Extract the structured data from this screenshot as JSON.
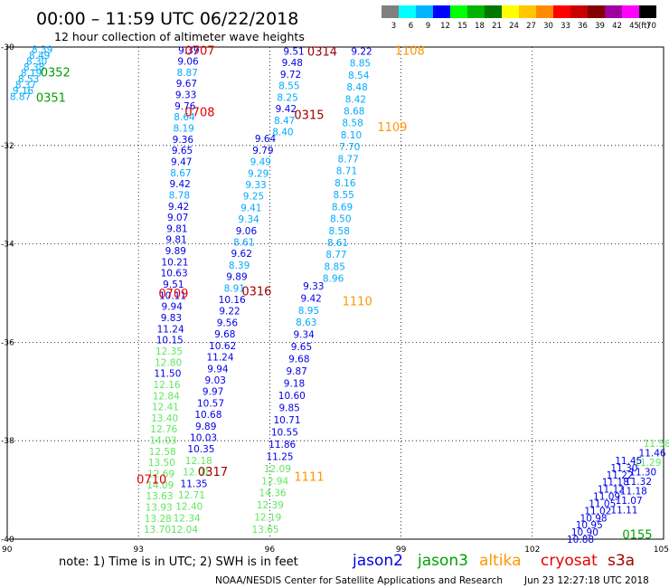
{
  "header": {
    "title": "00:00 – 11:59 UTC 06/22/2018",
    "subtitle": "12 hour collection of altimeter wave heights"
  },
  "colorbar": {
    "unit": "(ft)",
    "labels": [
      "3",
      "6",
      "9",
      "12",
      "15",
      "18",
      "21",
      "24",
      "27",
      "30",
      "33",
      "36",
      "39",
      "42",
      "45",
      "70"
    ],
    "colors": [
      "#808080",
      "#00ffff",
      "#00b4ff",
      "#0000ff",
      "#00ff00",
      "#00b400",
      "#007800",
      "#ffff00",
      "#ffc800",
      "#ff8c00",
      "#ff0000",
      "#c80000",
      "#820000",
      "#a000a0",
      "#ff00ff",
      "#000000"
    ]
  },
  "axes": {
    "lon_ticks": [
      "90",
      "93",
      "96",
      "99",
      "102",
      "105"
    ],
    "lat_ticks": [
      "-30",
      "-32",
      "-34",
      "-36",
      "-38",
      "-40"
    ],
    "lon_range": [
      90,
      105
    ],
    "lat_range": [
      -40,
      -30
    ]
  },
  "legend": {
    "note": "note:  1) Time is in UTC;  2) SWH is in feet",
    "missions": [
      {
        "name": "jason2",
        "color": "#0000e6"
      },
      {
        "name": "jason3",
        "color": "#00a000"
      },
      {
        "name": "altika",
        "color": "#ff9600"
      },
      {
        "name": "cryosat",
        "color": "#e60000"
      },
      {
        "name": "s3a",
        "color": "#a00000"
      }
    ]
  },
  "footer": {
    "credit": "NOAA/NESDIS Center for Satellite Applications and Research",
    "timestamp": "Jun 23 12:27:18 UTC 2018"
  },
  "track_times": [
    {
      "text": "0707",
      "lon": 94.4,
      "lat": -30.06,
      "color": "#e60000"
    },
    {
      "text": "0708",
      "lon": 94.4,
      "lat": -31.31,
      "color": "#e60000"
    },
    {
      "text": "0709",
      "lon": 93.8,
      "lat": -35.0,
      "color": "#e60000"
    },
    {
      "text": "0710",
      "lon": 93.3,
      "lat": -38.78,
      "color": "#e60000"
    },
    {
      "text": "0314",
      "lon": 97.2,
      "lat": -30.08,
      "color": "#a00000"
    },
    {
      "text": "0315",
      "lon": 96.9,
      "lat": -31.37,
      "color": "#a00000"
    },
    {
      "text": "0316",
      "lon": 95.7,
      "lat": -34.95,
      "color": "#a00000"
    },
    {
      "text": "0317",
      "lon": 94.7,
      "lat": -38.62,
      "color": "#a00000"
    },
    {
      "text": "1108",
      "lon": 99.2,
      "lat": -30.06,
      "color": "#ff9600"
    },
    {
      "text": "1109",
      "lon": 98.8,
      "lat": -31.62,
      "color": "#ff9600"
    },
    {
      "text": "1110",
      "lon": 98.0,
      "lat": -35.16,
      "color": "#ff9600"
    },
    {
      "text": "1111",
      "lon": 96.9,
      "lat": -38.72,
      "color": "#ff9600"
    },
    {
      "text": "0352",
      "lon": 91.1,
      "lat": -30.51,
      "color": "#00a000"
    },
    {
      "text": "0351",
      "lon": 91.0,
      "lat": -31.02,
      "color": "#00a000"
    },
    {
      "text": "0155",
      "lon": 104.4,
      "lat": -39.9,
      "color": "#00a000"
    }
  ],
  "tracks": [
    {
      "name": "track-93-95",
      "start_lon": 94.15,
      "start_lat": -30.06,
      "end_lon": 93.43,
      "end_lat": -39.8,
      "values": [
        "9.39",
        "9.06",
        "8.87",
        "9.67",
        "9.33",
        "9.76",
        "8.64",
        "8.19",
        "9.36",
        "9.65",
        "9.47",
        "8.67",
        "9.42",
        "8.78",
        "9.42",
        "9.07",
        "9.81",
        "9.81",
        "9.89",
        "10.21",
        "10.63",
        "9.51",
        "10.11",
        "9.94",
        "9.83",
        "11.24",
        "10.15",
        "12.35",
        "12.80",
        "11.50",
        "12.16",
        "12.84",
        "12.41",
        "13.40",
        "12.76",
        "14.03",
        "12.58",
        "13.50",
        "12.69",
        "14.09",
        "13.63",
        "13.93",
        "13.28",
        "13.70"
      ],
      "colors": [
        "#0000e6",
        "#0000e6",
        "#00aaff",
        "#0000e6",
        "#0000e6",
        "#0000e6",
        "#00aaff",
        "#00aaff",
        "#0000e6",
        "#0000e6",
        "#0000e6",
        "#00aaff",
        "#0000e6",
        "#00aaff",
        "#0000e6",
        "#0000e6",
        "#0000e6",
        "#0000e6",
        "#0000e6",
        "#0000e6",
        "#0000e6",
        "#0000e6",
        "#0000e6",
        "#0000e6",
        "#0000e6",
        "#0000e6",
        "#0000e6",
        "#5ee85e",
        "#5ee85e",
        "#0000e6",
        "#5ee85e",
        "#5ee85e",
        "#5ee85e",
        "#5ee85e",
        "#5ee85e",
        "#5ee85e",
        "#5ee85e",
        "#5ee85e",
        "#5ee85e",
        "#5ee85e",
        "#5ee85e",
        "#5ee85e",
        "#5ee85e",
        "#5ee85e"
      ]
    },
    {
      "name": "track-94-96",
      "start_lon": 95.9,
      "start_lat": -31.86,
      "end_lon": 94.05,
      "end_lat": -39.8,
      "values": [
        "9.64",
        "9.79",
        "9.49",
        "9.29",
        "9.33",
        "9.25",
        "9.41",
        "9.34",
        "9.06",
        "8.61",
        "9.62",
        "8.39",
        "9.89",
        "8.91",
        "10.16",
        "9.22",
        "9.56",
        "9.68",
        "10.62",
        "11.24",
        "9.94",
        "9.03",
        "9.97",
        "10.57",
        "10.68",
        "9.89",
        "10.03",
        "10.35",
        "12.18",
        "12.01",
        "11.35",
        "12.71",
        "12.40",
        "12.34",
        "12.04"
      ],
      "colors": [
        "#0000e6",
        "#0000e6",
        "#00aaff",
        "#00aaff",
        "#00aaff",
        "#00aaff",
        "#00aaff",
        "#00aaff",
        "#0000e6",
        "#00aaff",
        "#0000e6",
        "#00aaff",
        "#0000e6",
        "#00aaff",
        "#0000e6",
        "#0000e6",
        "#0000e6",
        "#0000e6",
        "#0000e6",
        "#0000e6",
        "#0000e6",
        "#0000e6",
        "#0000e6",
        "#0000e6",
        "#0000e6",
        "#0000e6",
        "#0000e6",
        "#0000e6",
        "#5ee85e",
        "#5ee85e",
        "#0000e6",
        "#5ee85e",
        "#5ee85e",
        "#5ee85e",
        "#5ee85e"
      ]
    },
    {
      "name": "track-96-north",
      "start_lon": 96.55,
      "start_lat": -30.08,
      "end_lon": 96.3,
      "end_lat": -31.72,
      "values": [
        "9.51",
        "9.48",
        "9.72",
        "8.55",
        "8.25",
        "9.42",
        "8.47",
        "8.40"
      ],
      "colors": [
        "#0000e6",
        "#0000e6",
        "#0000e6",
        "#00aaff",
        "#00aaff",
        "#0000e6",
        "#00aaff",
        "#00aaff"
      ]
    },
    {
      "name": "track-97-99",
      "start_lon": 97.0,
      "start_lat": -34.85,
      "end_lon": 95.9,
      "end_lat": -39.8,
      "values": [
        "9.33",
        "9.42",
        "8.95",
        "8.63",
        "9.34",
        "9.65",
        "9.68",
        "9.87",
        "9.18",
        "10.60",
        "9.85",
        "10.71",
        "10.55",
        "11.86",
        "11.25",
        "12.09",
        "12.94",
        "14.36",
        "12.39",
        "12.19",
        "13.65"
      ],
      "colors": [
        "#0000e6",
        "#0000e6",
        "#00aaff",
        "#00aaff",
        "#0000e6",
        "#0000e6",
        "#0000e6",
        "#0000e6",
        "#0000e6",
        "#0000e6",
        "#0000e6",
        "#0000e6",
        "#0000e6",
        "#0000e6",
        "#0000e6",
        "#5ee85e",
        "#5ee85e",
        "#5ee85e",
        "#5ee85e",
        "#5ee85e",
        "#5ee85e"
      ]
    },
    {
      "name": "track-98-upper",
      "start_lon": 98.1,
      "start_lat": -30.08,
      "end_lon": 97.45,
      "end_lat": -34.7,
      "values": [
        "9.22",
        "8.85",
        "8.54",
        "8.48",
        "8.42",
        "8.68",
        "8.58",
        "8.10",
        "7.70",
        "8.77",
        "8.71",
        "8.16",
        "8.55",
        "8.69",
        "8.50",
        "8.58",
        "8.61",
        "8.77",
        "8.85",
        "8.96"
      ],
      "colors": [
        "#0000e6",
        "#00aaff",
        "#00aaff",
        "#00aaff",
        "#00aaff",
        "#00aaff",
        "#00aaff",
        "#00aaff",
        "#00aaff",
        "#00aaff",
        "#00aaff",
        "#00aaff",
        "#00aaff",
        "#00aaff",
        "#00aaff",
        "#00aaff",
        "#00aaff",
        "#00aaff",
        "#00aaff",
        "#00aaff"
      ]
    },
    {
      "name": "track-nw-corner",
      "start_lon": 90.8,
      "start_lat": -30.05,
      "end_lon": 90.3,
      "end_lat": -31.0,
      "values": [
        "8.39",
        "8.49",
        "8.30",
        "8.38",
        "8.19",
        "8.53",
        "8.37",
        "9.16",
        "8.87"
      ],
      "colors": [
        "#00aaff",
        "#00aaff",
        "#00aaff",
        "#00aaff",
        "#00aaff",
        "#00aaff",
        "#00aaff",
        "#00aaff",
        "#00aaff"
      ]
    },
    {
      "name": "track-se-green",
      "start_lon": 104.85,
      "start_lat": -38.05,
      "end_lon": 104.1,
      "end_lat": -39.4,
      "values": [
        "11.58",
        "11.46",
        "11.29",
        "11.30",
        "11.32",
        "11.18",
        "11.07",
        "11.11"
      ],
      "colors": [
        "#5ee85e",
        "#0000e6",
        "#5ee85e",
        "#0000e6",
        "#0000e6",
        "#0000e6",
        "#0000e6",
        "#0000e6"
      ]
    },
    {
      "name": "track-se-blue",
      "start_lon": 104.2,
      "start_lat": -38.4,
      "end_lon": 103.1,
      "end_lat": -40.0,
      "values": [
        "11.45",
        "11.30",
        "11.22",
        "11.18",
        "11.12",
        "11.09",
        "11.05",
        "11.02",
        "10.98",
        "10.95",
        "10.90",
        "10.88"
      ],
      "colors": [
        "#0000e6",
        "#0000e6",
        "#0000e6",
        "#0000e6",
        "#0000e6",
        "#0000e6",
        "#0000e6",
        "#0000e6",
        "#0000e6",
        "#0000e6",
        "#0000e6",
        "#0000e6"
      ]
    }
  ]
}
